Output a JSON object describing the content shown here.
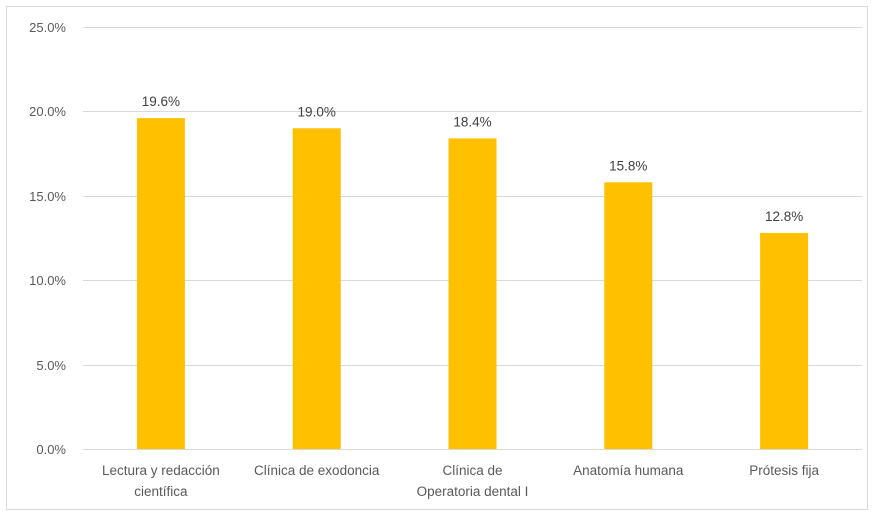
{
  "chart_data": {
    "type": "bar",
    "title": "",
    "xlabel": "",
    "ylabel": "",
    "categories": [
      [
        "Lectura y redacción",
        "científica"
      ],
      [
        "Clínica de exodoncia"
      ],
      [
        "Clínica de",
        "Operatoria dental I"
      ],
      [
        "Anatomía humana"
      ],
      [
        "Prótesis fija"
      ]
    ],
    "values": [
      19.6,
      19.0,
      18.4,
      15.8,
      12.8
    ],
    "data_labels": [
      "19.6%",
      "19.0%",
      "18.4%",
      "15.8%",
      "12.8%"
    ],
    "ylim": [
      0,
      25
    ],
    "yticks": [
      0,
      5,
      10,
      15,
      20,
      25
    ],
    "ytick_labels": [
      "0.0%",
      "5.0%",
      "10.0%",
      "15.0%",
      "20.0%",
      "25.0%"
    ],
    "grid": true,
    "legend": "none",
    "bar_color": "#FFC000",
    "grid_color": "#d9d9d9"
  }
}
